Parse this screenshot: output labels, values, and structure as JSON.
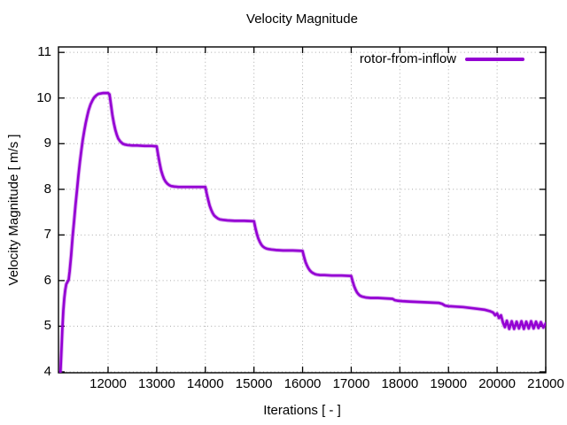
{
  "chart_data": {
    "type": "line",
    "title": "Velocity Magnitude",
    "xlabel": "Iterations [ - ]",
    "ylabel": "Velocity Magnitude [ m/s ]",
    "grid": true,
    "legend_position": "top-right-inside",
    "xlim": [
      10980,
      21000
    ],
    "ylim": [
      3.98,
      11.12
    ],
    "xticks": [
      12000,
      13000,
      14000,
      15000,
      16000,
      17000,
      18000,
      19000,
      20000,
      21000
    ],
    "yticks": [
      4,
      5,
      6,
      7,
      8,
      9,
      10,
      11
    ],
    "colors": {
      "axis": "#000000",
      "grid": "#aaaaaa",
      "background": "#ffffff"
    },
    "series": [
      {
        "name": "rotor-from-inflow",
        "color": "#9400d3",
        "points": [
          [
            11020,
            3.98
          ],
          [
            11040,
            4.45
          ],
          [
            11060,
            4.95
          ],
          [
            11080,
            5.35
          ],
          [
            11100,
            5.62
          ],
          [
            11120,
            5.8
          ],
          [
            11140,
            5.92
          ],
          [
            11165,
            5.97
          ],
          [
            11190,
            6.02
          ],
          [
            11210,
            6.2
          ],
          [
            11240,
            6.55
          ],
          [
            11270,
            6.95
          ],
          [
            11300,
            7.3
          ],
          [
            11330,
            7.65
          ],
          [
            11360,
            7.98
          ],
          [
            11390,
            8.3
          ],
          [
            11420,
            8.6
          ],
          [
            11450,
            8.85
          ],
          [
            11480,
            9.08
          ],
          [
            11510,
            9.28
          ],
          [
            11540,
            9.45
          ],
          [
            11570,
            9.6
          ],
          [
            11600,
            9.73
          ],
          [
            11640,
            9.86
          ],
          [
            11680,
            9.95
          ],
          [
            11720,
            10.02
          ],
          [
            11760,
            10.06
          ],
          [
            11800,
            10.09
          ],
          [
            11850,
            10.1
          ],
          [
            11900,
            10.11
          ],
          [
            11950,
            10.11
          ],
          [
            12000,
            10.11
          ],
          [
            12030,
            10.08
          ],
          [
            12060,
            9.85
          ],
          [
            12090,
            9.62
          ],
          [
            12120,
            9.44
          ],
          [
            12150,
            9.3
          ],
          [
            12180,
            9.19
          ],
          [
            12210,
            9.11
          ],
          [
            12250,
            9.05
          ],
          [
            12300,
            9.0
          ],
          [
            12350,
            8.98
          ],
          [
            12400,
            8.97
          ],
          [
            12500,
            8.96
          ],
          [
            12600,
            8.96
          ],
          [
            12750,
            8.95
          ],
          [
            12900,
            8.95
          ],
          [
            13000,
            8.94
          ],
          [
            13030,
            8.75
          ],
          [
            13060,
            8.57
          ],
          [
            13090,
            8.42
          ],
          [
            13120,
            8.31
          ],
          [
            13150,
            8.23
          ],
          [
            13180,
            8.17
          ],
          [
            13220,
            8.12
          ],
          [
            13260,
            8.09
          ],
          [
            13300,
            8.07
          ],
          [
            13360,
            8.06
          ],
          [
            13450,
            8.05
          ],
          [
            13600,
            8.05
          ],
          [
            13800,
            8.05
          ],
          [
            14000,
            8.05
          ],
          [
            14030,
            7.9
          ],
          [
            14060,
            7.76
          ],
          [
            14090,
            7.64
          ],
          [
            14120,
            7.55
          ],
          [
            14150,
            7.48
          ],
          [
            14180,
            7.43
          ],
          [
            14220,
            7.39
          ],
          [
            14260,
            7.36
          ],
          [
            14300,
            7.34
          ],
          [
            14360,
            7.33
          ],
          [
            14450,
            7.32
          ],
          [
            14600,
            7.31
          ],
          [
            14800,
            7.31
          ],
          [
            15000,
            7.3
          ],
          [
            15030,
            7.15
          ],
          [
            15060,
            7.02
          ],
          [
            15090,
            6.92
          ],
          [
            15120,
            6.85
          ],
          [
            15150,
            6.79
          ],
          [
            15180,
            6.75
          ],
          [
            15220,
            6.72
          ],
          [
            15260,
            6.7
          ],
          [
            15300,
            6.69
          ],
          [
            15360,
            6.68
          ],
          [
            15450,
            6.67
          ],
          [
            15600,
            6.66
          ],
          [
            15800,
            6.66
          ],
          [
            16000,
            6.65
          ],
          [
            16030,
            6.52
          ],
          [
            16060,
            6.41
          ],
          [
            16090,
            6.33
          ],
          [
            16120,
            6.27
          ],
          [
            16150,
            6.22
          ],
          [
            16180,
            6.19
          ],
          [
            16220,
            6.16
          ],
          [
            16260,
            6.14
          ],
          [
            16300,
            6.13
          ],
          [
            16360,
            6.12
          ],
          [
            16450,
            6.12
          ],
          [
            16600,
            6.11
          ],
          [
            16800,
            6.11
          ],
          [
            17000,
            6.1
          ],
          [
            17030,
            5.98
          ],
          [
            17060,
            5.88
          ],
          [
            17090,
            5.8
          ],
          [
            17120,
            5.74
          ],
          [
            17150,
            5.7
          ],
          [
            17180,
            5.67
          ],
          [
            17220,
            5.65
          ],
          [
            17260,
            5.64
          ],
          [
            17300,
            5.63
          ],
          [
            17400,
            5.62
          ],
          [
            17550,
            5.62
          ],
          [
            17700,
            5.61
          ],
          [
            17850,
            5.6
          ],
          [
            17900,
            5.57
          ],
          [
            17950,
            5.56
          ],
          [
            18050,
            5.55
          ],
          [
            18200,
            5.54
          ],
          [
            18400,
            5.53
          ],
          [
            18600,
            5.52
          ],
          [
            18800,
            5.51
          ],
          [
            18870,
            5.49
          ],
          [
            18930,
            5.45
          ],
          [
            19000,
            5.44
          ],
          [
            19150,
            5.43
          ],
          [
            19300,
            5.42
          ],
          [
            19450,
            5.4
          ],
          [
            19600,
            5.38
          ],
          [
            19750,
            5.36
          ],
          [
            19850,
            5.33
          ],
          [
            19920,
            5.3
          ],
          [
            19960,
            5.24
          ],
          [
            20000,
            5.28
          ],
          [
            20040,
            5.18
          ],
          [
            20080,
            5.24
          ],
          [
            20120,
            5.08
          ],
          [
            20160,
            4.98
          ],
          [
            20200,
            5.12
          ],
          [
            20250,
            4.94
          ],
          [
            20300,
            5.11
          ],
          [
            20350,
            4.94
          ],
          [
            20400,
            5.1
          ],
          [
            20450,
            4.95
          ],
          [
            20500,
            5.11
          ],
          [
            20550,
            4.94
          ],
          [
            20600,
            5.1
          ],
          [
            20650,
            4.95
          ],
          [
            20700,
            5.11
          ],
          [
            20750,
            4.95
          ],
          [
            20800,
            5.1
          ],
          [
            20850,
            4.96
          ],
          [
            20900,
            5.09
          ],
          [
            20950,
            4.97
          ],
          [
            21000,
            5.06
          ]
        ]
      }
    ]
  }
}
